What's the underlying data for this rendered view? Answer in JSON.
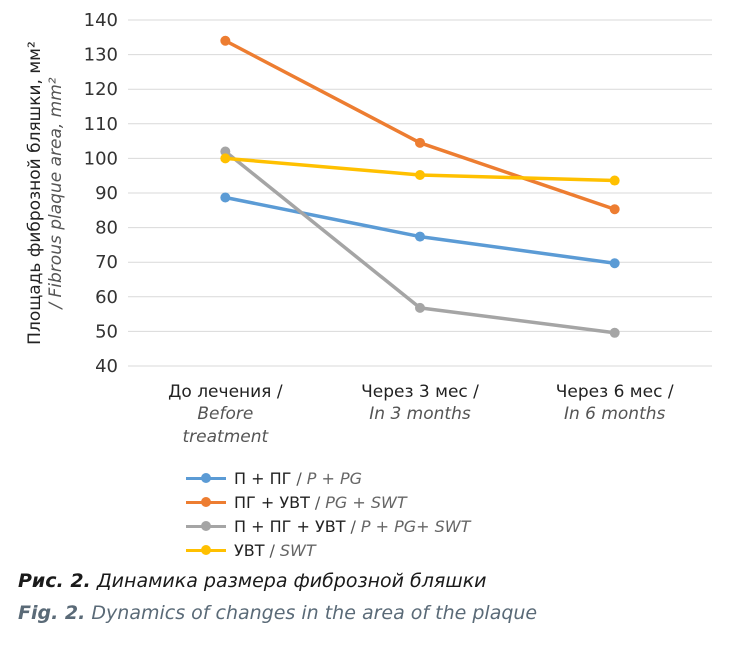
{
  "chart_data": {
    "type": "line",
    "ylabel_ru": "Площадь фиброзной бляшки, мм²",
    "ylabel_en": "/ Fibrous plaque area, mm²",
    "ylim": [
      40,
      140
    ],
    "yticks": [
      40,
      50,
      60,
      70,
      80,
      90,
      100,
      110,
      120,
      130,
      140
    ],
    "grid": true,
    "legend_position": "bottom",
    "categories": [
      {
        "ru": "До лечения /",
        "en_lines": [
          "Before",
          "treatment"
        ]
      },
      {
        "ru": "Через 3 мес /",
        "en_lines": [
          "In 3 months"
        ]
      },
      {
        "ru": "Через 6 мес /",
        "en_lines": [
          "In 6 months"
        ]
      }
    ],
    "series": [
      {
        "name_ru": "П + ПГ",
        "name_en": "P + PG",
        "color": "#5b9bd5",
        "values": [
          88.7,
          77.4,
          69.7
        ]
      },
      {
        "name_ru": "ПГ + УВТ",
        "name_en": "PG + SWT",
        "color": "#ed7d31",
        "values": [
          134,
          104.5,
          85.3
        ]
      },
      {
        "name_ru": "П + ПГ + УВТ",
        "name_en": "P + PG+ SWT",
        "color": "#a5a5a5",
        "values": [
          102,
          56.8,
          49.6
        ]
      },
      {
        "name_ru": "УВТ",
        "name_en": "SWT",
        "color": "#ffc000",
        "values": [
          100,
          95.2,
          93.6
        ]
      }
    ]
  },
  "legend_sep": "/",
  "caption": {
    "ru_label": "Рис. 2.",
    "ru_text": "Динамика размера фиброзной бляшки",
    "en_label": "Fig. 2.",
    "en_text": "Dynamics of changes in the area of the plaque"
  }
}
